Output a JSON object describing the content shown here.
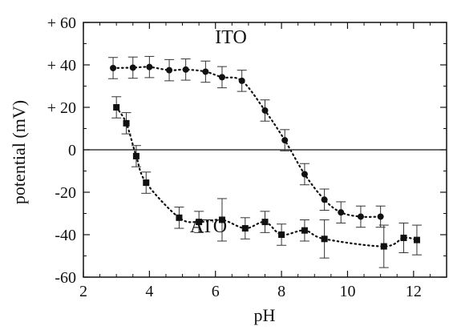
{
  "chart_data": {
    "type": "scatter",
    "title": "",
    "xlabel": "pH",
    "ylabel": "potential (mV)",
    "xlim": [
      2,
      13
    ],
    "ylim": [
      -60,
      60
    ],
    "x_ticks": [
      2,
      4,
      6,
      8,
      10,
      12
    ],
    "x_tick_labels": [
      "2",
      "4",
      "6",
      "8",
      "10",
      "12"
    ],
    "y_ticks": [
      60,
      40,
      20,
      0,
      -20,
      -40,
      -60
    ],
    "y_tick_labels": [
      "+ 60",
      "+ 40",
      "+ 20",
      "0",
      "-20",
      "-40",
      "-60"
    ],
    "zero_line": true,
    "grid": false,
    "series": [
      {
        "name": "ITO",
        "marker": "circle",
        "color": "#111111",
        "x": [
          2.9,
          3.5,
          4.0,
          4.6,
          5.1,
          5.7,
          6.2,
          6.8,
          7.5,
          8.1,
          8.7,
          9.3,
          9.8,
          10.4,
          11.0
        ],
        "y": [
          38.5,
          38.7,
          39.0,
          37.5,
          37.8,
          36.8,
          34.2,
          32.5,
          18.5,
          4.5,
          -11.5,
          -23.5,
          -29.5,
          -31.5,
          -31.5
        ],
        "err": [
          5,
          5,
          5,
          5,
          5,
          5,
          5,
          5,
          5,
          5,
          5,
          5,
          5,
          5,
          5
        ]
      },
      {
        "name": "ATO",
        "marker": "square",
        "color": "#111111",
        "x": [
          3.0,
          3.3,
          3.6,
          3.9,
          4.9,
          5.5,
          6.2,
          6.9,
          7.5,
          8.0,
          8.7,
          9.3,
          11.1,
          11.7,
          12.1
        ],
        "y": [
          20.0,
          12.5,
          -3.0,
          -15.5,
          -32.0,
          -34.0,
          -33.0,
          -37.0,
          -34.0,
          -40.0,
          -38.0,
          -42.0,
          -45.5,
          -41.5,
          -42.5
        ],
        "err": [
          5,
          5,
          5,
          5,
          5,
          5,
          10,
          5,
          5,
          5,
          5,
          9,
          10,
          7,
          7
        ]
      }
    ]
  }
}
